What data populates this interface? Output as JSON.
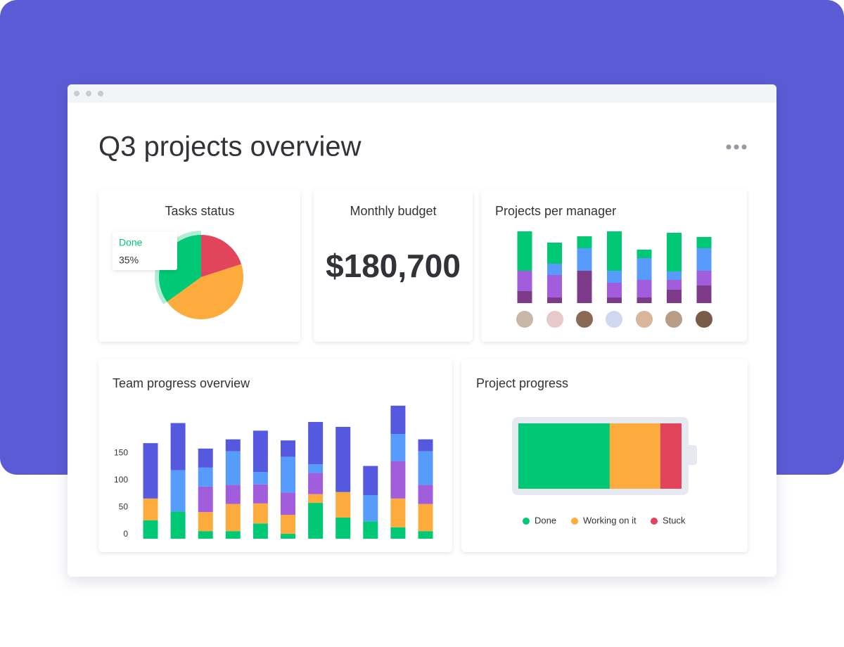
{
  "header": {
    "title": "Q3 projects overview"
  },
  "budget": {
    "title": "Monthly budget",
    "value": "$180,700"
  },
  "chart_data": [
    {
      "type": "pie",
      "title": "Tasks status",
      "categories": [
        "Done",
        null,
        null
      ],
      "values": [
        35,
        45,
        20
      ],
      "value_labels": [
        "35%",
        null,
        null
      ],
      "colors": [
        "#00c875",
        "#fdab3d",
        "#e2445c"
      ]
    },
    {
      "type": "bar",
      "stacked": true,
      "title": "Projects per manager",
      "ylim": [
        0,
        102
      ],
      "series": [
        {
          "color": "#7e3b8a",
          "values": [
            17,
            8,
            46,
            8,
            8,
            19,
            25
          ]
        },
        {
          "color": "#a25ddc",
          "values": [
            29,
            32,
            0,
            21,
            25,
            14,
            21
          ]
        },
        {
          "color": "#579bfc",
          "values": [
            0,
            16,
            32,
            17,
            31,
            12,
            32
          ]
        },
        {
          "color": "#00c875",
          "values": [
            56,
            30,
            17,
            56,
            12,
            55,
            16
          ]
        }
      ]
    },
    {
      "type": "bar",
      "stacked": true,
      "title": "Team progress overview",
      "ylim": [
        0,
        250
      ],
      "yticks": [
        0,
        50,
        100,
        150
      ],
      "series": [
        {
          "color": "#00c875",
          "values": [
            34,
            50,
            14,
            14,
            28,
            9,
            66,
            39,
            32,
            21,
            14
          ]
        },
        {
          "color": "#fdab3d",
          "values": [
            40,
            0,
            35,
            50,
            37,
            35,
            16,
            47,
            0,
            53,
            50
          ]
        },
        {
          "color": "#a25ddc",
          "values": [
            0,
            0,
            47,
            35,
            35,
            41,
            39,
            0,
            0,
            69,
            35
          ]
        },
        {
          "color": "#579bfc",
          "values": [
            0,
            76,
            35,
            62,
            23,
            66,
            16,
            0,
            48,
            50,
            62
          ]
        },
        {
          "color": "#5559df",
          "values": [
            102,
            87,
            35,
            22,
            76,
            30,
            78,
            120,
            54,
            52,
            22
          ]
        }
      ]
    },
    {
      "type": "bar",
      "orientation": "horizontal",
      "stacked": true,
      "title": "Project progress",
      "xlim": [
        0,
        100
      ],
      "series": [
        {
          "name": "Done",
          "color": "#00c875",
          "values": [
            56
          ]
        },
        {
          "name": "Working on it",
          "color": "#fdab3d",
          "values": [
            31
          ]
        },
        {
          "name": "Stuck",
          "color": "#e2445c",
          "values": [
            13
          ]
        }
      ]
    }
  ]
}
